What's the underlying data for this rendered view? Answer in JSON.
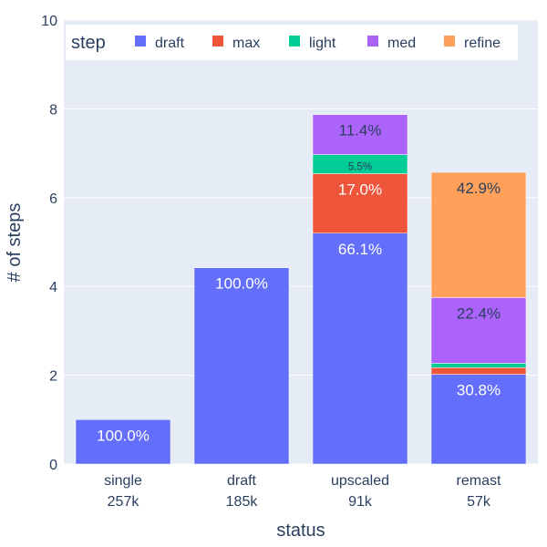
{
  "chart_data": {
    "type": "bar",
    "barmode": "stack",
    "xlabel": "status",
    "ylabel": "# of steps",
    "ylim": [
      0,
      10
    ],
    "yticks": [
      0,
      2,
      4,
      6,
      8,
      10
    ],
    "categories": [
      "single",
      "draft",
      "upscaled",
      "remast"
    ],
    "category_counts": [
      "257k",
      "185k",
      "91k",
      "57k"
    ],
    "legend": {
      "title": "step",
      "position": "top",
      "orientation": "horizontal"
    },
    "series": [
      {
        "name": "draft",
        "color": "#636efa",
        "values": [
          1.0,
          4.42,
          5.2,
          2.02
        ],
        "labels": [
          "100.0%",
          "100.0%",
          "66.1%",
          "30.8%"
        ]
      },
      {
        "name": "max",
        "color": "#ef553b",
        "values": [
          0,
          0,
          1.34,
          0.15
        ],
        "labels": [
          "",
          "",
          "17.0%",
          ""
        ]
      },
      {
        "name": "light",
        "color": "#00cc96",
        "values": [
          0,
          0,
          0.43,
          0.1
        ],
        "labels": [
          "",
          "",
          "5.5%",
          ""
        ]
      },
      {
        "name": "med",
        "color": "#ab63fa",
        "values": [
          0,
          0,
          0.9,
          1.48
        ],
        "labels": [
          "",
          "",
          "11.4%",
          "22.4%"
        ]
      },
      {
        "name": "refine",
        "color": "#ffa15a",
        "values": [
          0,
          0,
          0,
          2.82
        ],
        "labels": [
          "",
          "",
          "",
          "42.9%"
        ]
      }
    ]
  }
}
